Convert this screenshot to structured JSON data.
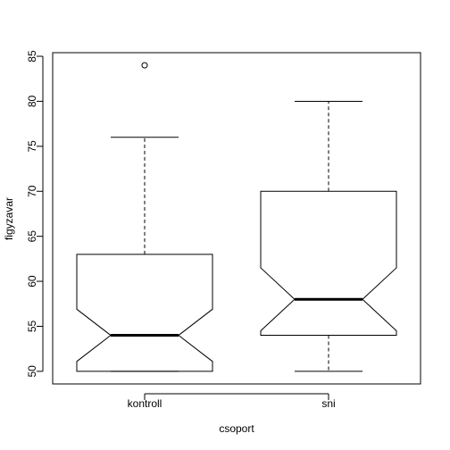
{
  "chart_data": {
    "type": "boxplot",
    "notched": true,
    "xlabel": "csoport",
    "ylabel": "figyzavar",
    "ylim": [
      48.6,
      85.4
    ],
    "y_ticks": [
      50,
      55,
      60,
      65,
      70,
      75,
      80,
      85
    ],
    "categories": [
      "kontroll",
      "sni"
    ],
    "boxes": [
      {
        "name": "kontroll",
        "whisker_low": 50,
        "q1": 50,
        "median": 54,
        "q3": 63,
        "whisker_high": 76,
        "notch_low": 51.1,
        "notch_high": 56.9,
        "outliers": [
          84
        ]
      },
      {
        "name": "sni",
        "whisker_low": 50,
        "q1": 54,
        "median": 58,
        "q3": 70,
        "whisker_high": 80,
        "notch_low": 54.5,
        "notch_high": 61.5,
        "outliers": []
      }
    ]
  }
}
